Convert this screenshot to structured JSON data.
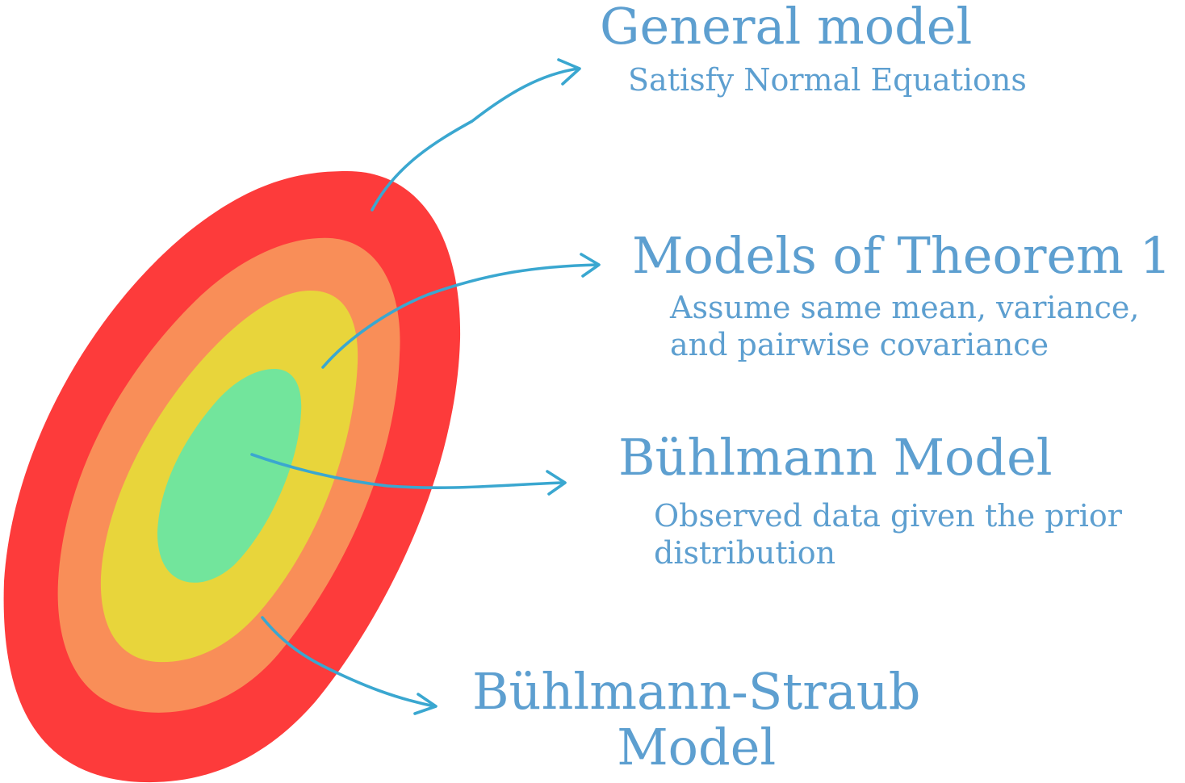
{
  "colors": {
    "outer": "#fd3b3b",
    "second": "#f98e58",
    "third": "#e8d53b",
    "inner": "#72e59c",
    "arrow": "#3aa7d0",
    "text": "#5d9fd0"
  },
  "layers": [
    {
      "id": "general",
      "title": "General model",
      "desc": "Satisfy Normal Equations"
    },
    {
      "id": "theorem",
      "title": "Models of Theorem 1",
      "desc_lines": [
        "Assume same mean, variance,",
        "and pairwise covariance"
      ]
    },
    {
      "id": "buhlmann",
      "title": "Bühlmann Model",
      "desc_lines": [
        "Observed data given the prior",
        "distribution"
      ]
    },
    {
      "id": "straub",
      "title_lines": [
        "Bühlmann-Straub",
        "Model"
      ]
    }
  ]
}
